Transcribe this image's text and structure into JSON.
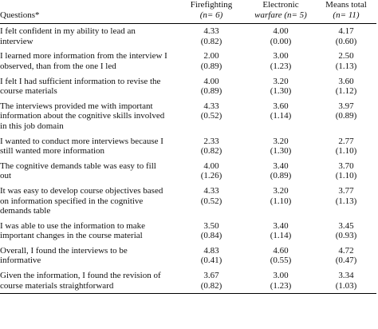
{
  "table": {
    "header": [
      "Questions*",
      "Firefighting",
      "(n= 6)",
      "Electronic",
      "warfare (n= 5)",
      "Means total",
      "(n= 11)"
    ],
    "rows": [
      [
        "I felt confident in my ability to lead an interview",
        "4.33",
        "(0.82)",
        "4.00",
        "(0.00)",
        "4.17",
        "(0.60)"
      ],
      [
        "I learned more information from the interview I observed, than from the one I led",
        "2.00",
        "(0.89)",
        "3.00",
        "(1.23)",
        "2.50",
        "(1.13)"
      ],
      [
        "I felt I had sufficient information to revise the course materials",
        "4.00",
        "(0.89)",
        "3.20",
        "(1.30)",
        "3.60",
        "(1.12)"
      ],
      [
        "The interviews provided me with important information about the cognitive skills involved in this job domain",
        "4.33",
        "(0.52)",
        "3.60",
        "(1.14)",
        "3.97",
        "(0.89)"
      ],
      [
        "I wanted to conduct more interviews because I still wanted more information",
        "2.33",
        "(0.82)",
        "3.20",
        "(1.30)",
        "2.77",
        "(1.10)"
      ],
      [
        "The cognitive demands table was easy to fill out",
        "4.00",
        "(1.26)",
        "3.40",
        "(0.89)",
        "3.70",
        "(1.10)"
      ],
      [
        "It was easy to develop course objectives based on information specified in the cognitive demands table",
        "4.33",
        "(0.52)",
        "3.20",
        "(1.10)",
        "3.77",
        "(1.13)"
      ],
      [
        "I was able to use the information to make important changes in the course material",
        "3.50",
        "(0.84)",
        "3.40",
        "(1.14)",
        "3.45",
        "(0.93)"
      ],
      [
        "Overall, I found the interviews to be informative",
        "4.83",
        "(0.41)",
        "4.60",
        "(0.55)",
        "4.72",
        "(0.47)"
      ],
      [
        "Given the information, I found the revision of course materials straightforward",
        "3.67",
        "(0.82)",
        "3.00",
        "(1.23)",
        "3.34",
        "(1.03)"
      ]
    ]
  }
}
